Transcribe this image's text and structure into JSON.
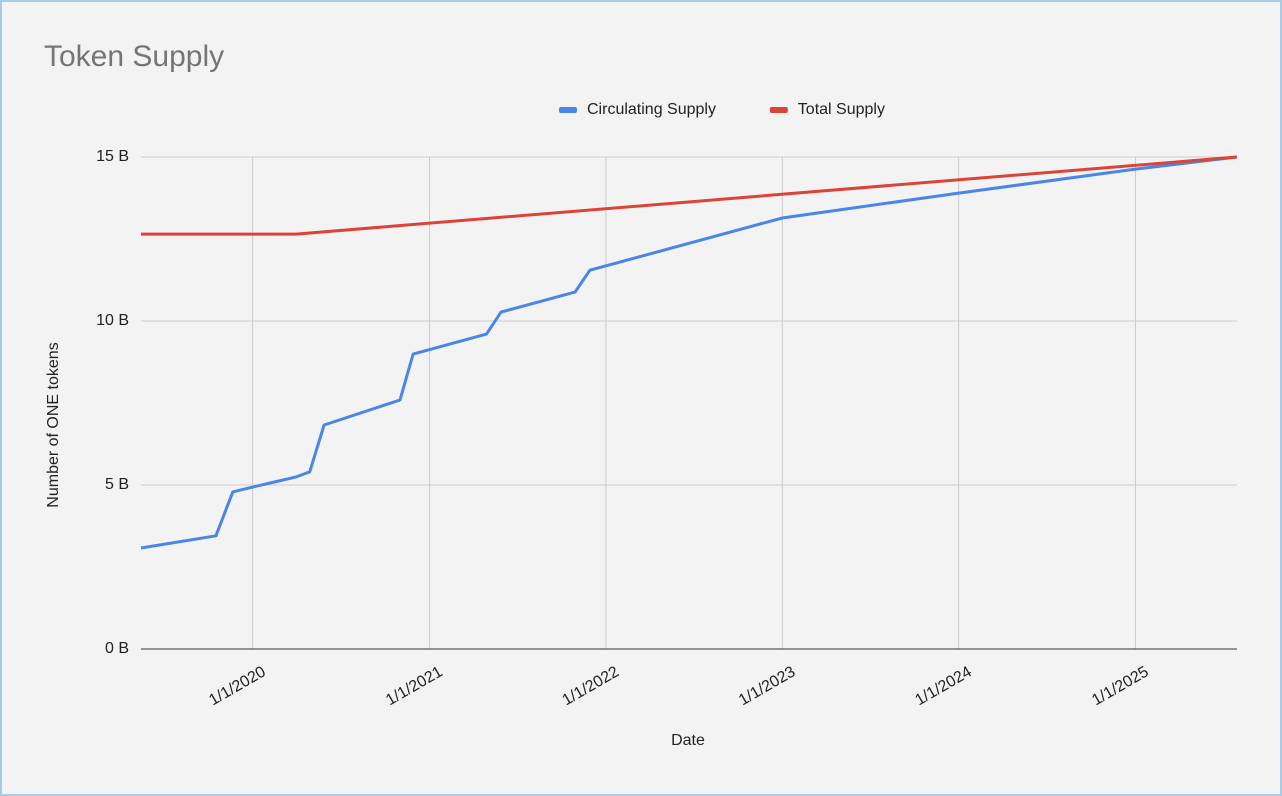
{
  "chart_data": {
    "type": "line",
    "title": "Token Supply",
    "x_label": "Date",
    "y_label": "Number of ONE tokens",
    "xlim": [
      "5/15/2019",
      "7/30/2025"
    ],
    "xticks": [
      "1/1/2020",
      "1/1/2021",
      "1/1/2022",
      "1/1/2023",
      "1/1/2024",
      "1/1/2025"
    ],
    "ylim": [
      0,
      15
    ],
    "yticks": [
      {
        "value": 0,
        "label": "0 B"
      },
      {
        "value": 5,
        "label": "5 B"
      },
      {
        "value": 10,
        "label": "10 B"
      },
      {
        "value": 15,
        "label": "15 B"
      }
    ],
    "grid": true,
    "legend": "top",
    "series": [
      {
        "name": "Circulating Supply",
        "color": "#4a86e8",
        "x": [
          "5/15/2019",
          "10/17/2019",
          "11/21/2019",
          "12/16/2019",
          "2/15/2020",
          "3/30/2020",
          "4/28/2020",
          "5/28/2020",
          "11/1/2020",
          "11/28/2020",
          "4/29/2021",
          "5/29/2021",
          "10/29/2021",
          "11/29/2021",
          "1/1/2023",
          "1/1/2024",
          "1/1/2025",
          "7/30/2025"
        ],
        "values": [
          3.08,
          3.45,
          4.79,
          4.88,
          5.09,
          5.24,
          5.4,
          6.83,
          7.59,
          8.99,
          9.6,
          10.27,
          10.88,
          11.55,
          13.14,
          13.9,
          14.63,
          15.0
        ]
      },
      {
        "name": "Total Supply",
        "color": "#db4437",
        "x": [
          "5/15/2019",
          "3/31/2020",
          "7/30/2025"
        ],
        "values": [
          12.65,
          12.65,
          15.0
        ]
      }
    ]
  }
}
